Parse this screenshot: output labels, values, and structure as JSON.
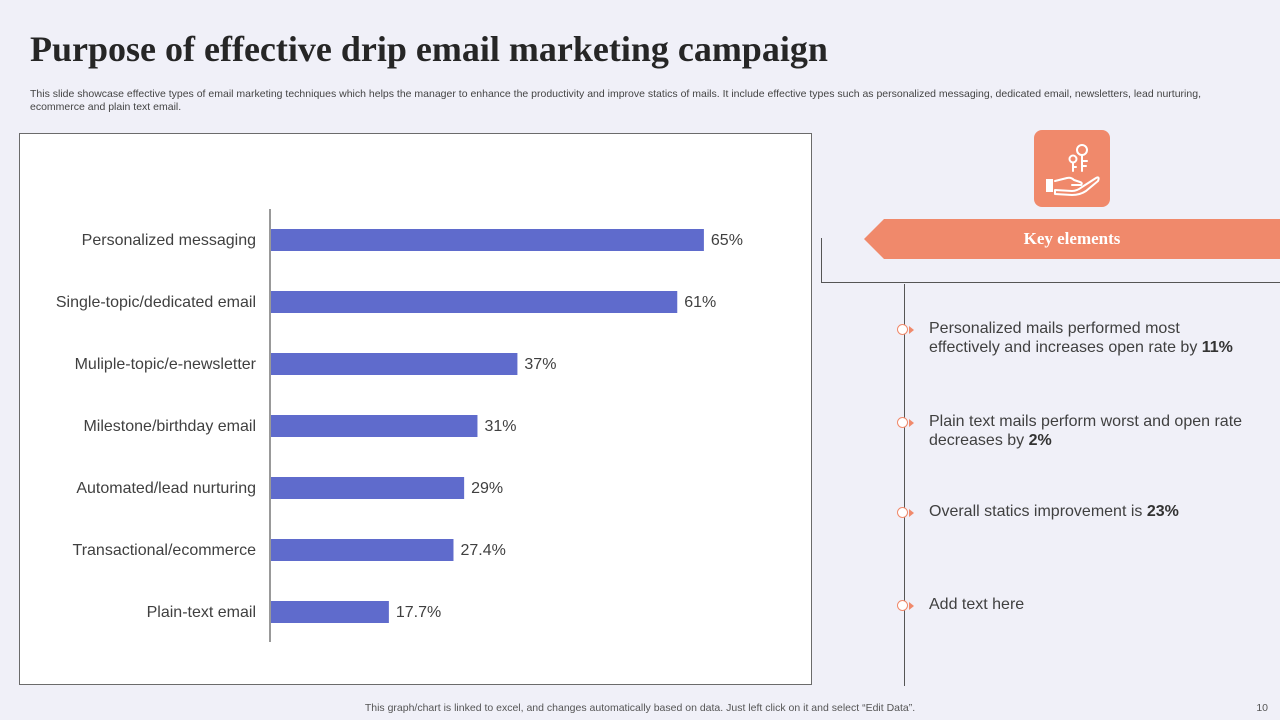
{
  "slide": {
    "title": "Purpose of effective drip email marketing campaign",
    "subtitle": "This slide showcase effective types of email marketing techniques which helps the manager to enhance the productivity and improve statics of mails. It include effective types such as personalized messaging, dedicated email, newsletters, lead nurturing, ecommerce and plain text email.",
    "footer_note": "This graph/chart is linked to excel,  and changes automatically based on data. Just left click on it and select “Edit Data”.",
    "page_number": "10"
  },
  "key_panel": {
    "heading": "Key elements",
    "icon": "key-in-hand-icon",
    "items": [
      {
        "text": "Personalized mails performed most effectively   and increases open rate by ",
        "highlight": "11%"
      },
      {
        "text": "Plain text mails perform worst and open rate decreases by ",
        "highlight": "2%"
      },
      {
        "text": "Overall statics improvement is ",
        "highlight": "23%"
      },
      {
        "text": "Add text here",
        "highlight": ""
      }
    ]
  },
  "colors": {
    "bar": "#5f6bcc",
    "accent": "#f0896b",
    "background": "#f0f0f8"
  },
  "chart_data": {
    "type": "bar",
    "orientation": "horizontal",
    "categories": [
      "Personalized messaging",
      "Single-topic/dedicated email",
      "Muliple-topic/e-newsletter",
      "Milestone/birthday email",
      "Automated/lead nurturing",
      "Transactional/ecommerce",
      "Plain-text email"
    ],
    "values": [
      65,
      61,
      37,
      31,
      29,
      27.4,
      17.7
    ],
    "data_labels": [
      "65%",
      "61%",
      "37%",
      "31%",
      "29%",
      "27.4%",
      "17.7%"
    ],
    "unit": "%",
    "xlim": [
      0,
      100
    ],
    "grid": false,
    "legend": "none",
    "title": "",
    "xlabel": "",
    "ylabel": ""
  }
}
